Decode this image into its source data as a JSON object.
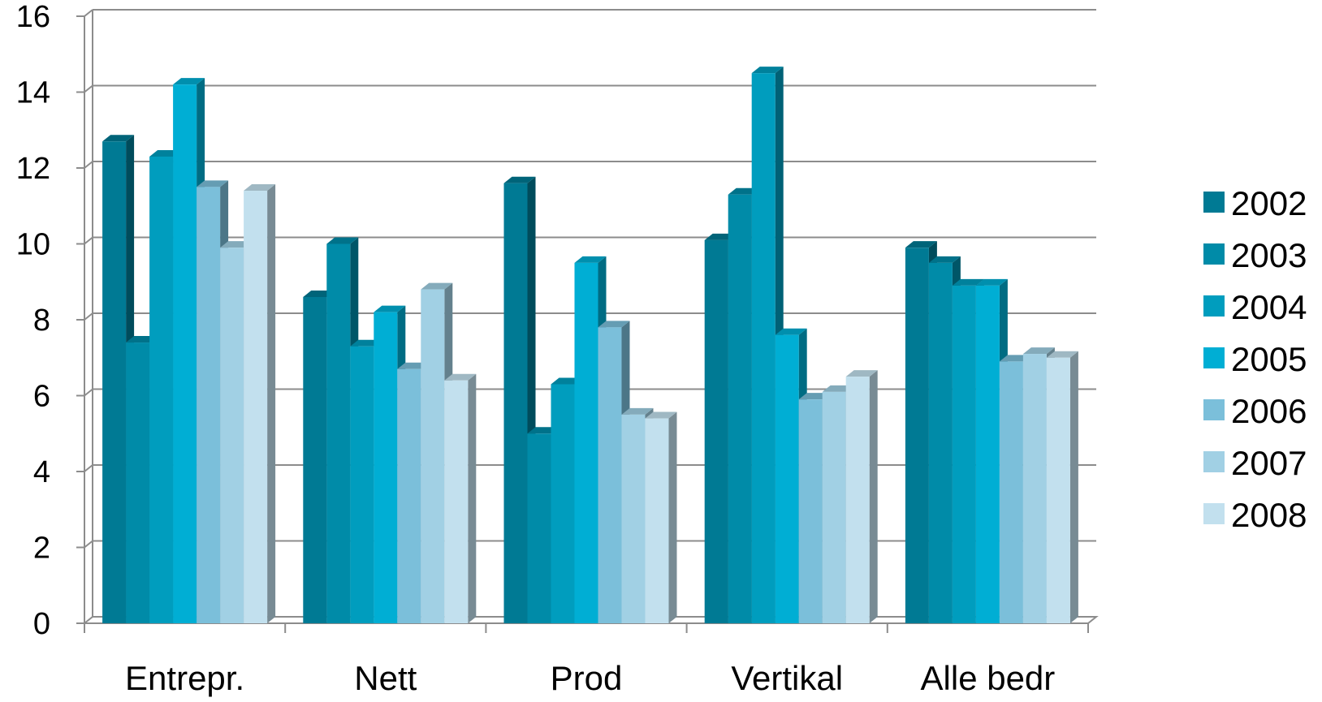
{
  "chart_data": {
    "type": "bar",
    "title": "",
    "xlabel": "",
    "ylabel": "",
    "ylim": [
      0,
      16
    ],
    "yticks": [
      "0",
      "2",
      "4",
      "6",
      "8",
      "10",
      "12",
      "14",
      "16"
    ],
    "grid": true,
    "legend_position": "right",
    "categories": [
      "Entrepr.",
      "Nett",
      "Prod",
      "Vertikal",
      "Alle bedr"
    ],
    "series": [
      {
        "name": "2002",
        "color": "#007A94",
        "values": [
          12.7,
          8.6,
          11.6,
          10.1,
          9.9
        ]
      },
      {
        "name": "2003",
        "color": "#008BA8",
        "values": [
          7.4,
          10.0,
          5.0,
          11.3,
          9.5
        ]
      },
      {
        "name": "2004",
        "color": "#009DBE",
        "values": [
          12.3,
          7.3,
          6.3,
          14.5,
          8.9
        ]
      },
      {
        "name": "2005",
        "color": "#00AED4",
        "values": [
          14.2,
          8.2,
          9.5,
          7.6,
          8.9
        ]
      },
      {
        "name": "2006",
        "color": "#7BBFDA",
        "values": [
          11.5,
          6.7,
          7.8,
          5.9,
          6.9
        ]
      },
      {
        "name": "2007",
        "color": "#A1D0E4",
        "values": [
          9.9,
          8.8,
          5.5,
          6.1,
          7.1
        ]
      },
      {
        "name": "2008",
        "color": "#C2E0EE",
        "values": [
          11.4,
          6.4,
          5.4,
          6.5,
          7.0
        ]
      }
    ]
  }
}
